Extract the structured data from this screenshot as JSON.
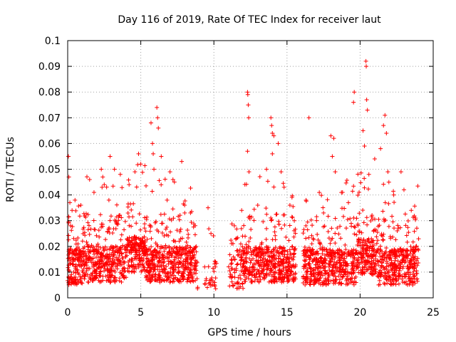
{
  "chart_data": {
    "type": "scatter",
    "title": "Day 116 of 2019, Rate Of TEC Index for receiver laut",
    "xlabel": "GPS time / hours",
    "ylabel": "ROTI / TECUs",
    "xlim": [
      0,
      25
    ],
    "ylim": [
      0,
      0.1
    ],
    "xticks": [
      "0",
      "5",
      "10",
      "15",
      "20",
      "25"
    ],
    "xtick_values": [
      0,
      5,
      10,
      15,
      20,
      25
    ],
    "yticks": [
      "0",
      "0.01",
      "0.02",
      "0.03",
      "0.04",
      "0.05",
      "0.06",
      "0.07",
      "0.08",
      "0.09",
      "0.1"
    ],
    "ytick_values": [
      0,
      0.01,
      0.02,
      0.03,
      0.04,
      0.05,
      0.06,
      0.07,
      0.08,
      0.09,
      0.1
    ],
    "grid": true,
    "marker": "+",
    "marker_color": "#ff0000",
    "data_gaps_hours": [
      [
        8.9,
        9.3
      ],
      [
        10.2,
        11.0
      ],
      [
        15.6,
        16.1
      ]
    ],
    "series": [
      {
        "name": "ROTI",
        "points": [
          [
            0.05,
            0.055
          ],
          [
            0.08,
            0.047
          ],
          [
            0.15,
            0.037
          ],
          [
            0.3,
            0.034
          ],
          [
            0.5,
            0.038
          ],
          [
            0.9,
            0.036
          ],
          [
            1.5,
            0.046
          ],
          [
            1.8,
            0.041
          ],
          [
            2.3,
            0.05
          ],
          [
            2.4,
            0.047
          ],
          [
            2.5,
            0.044
          ],
          [
            2.9,
            0.055
          ],
          [
            3.2,
            0.05
          ],
          [
            3.6,
            0.048
          ],
          [
            4.2,
            0.044
          ],
          [
            4.6,
            0.049
          ],
          [
            4.85,
            0.056
          ],
          [
            5.0,
            0.052
          ],
          [
            5.7,
            0.068
          ],
          [
            5.8,
            0.06
          ],
          [
            5.85,
            0.056
          ],
          [
            5.9,
            0.05
          ],
          [
            6.1,
            0.074
          ],
          [
            6.15,
            0.07
          ],
          [
            6.2,
            0.066
          ],
          [
            6.4,
            0.055
          ],
          [
            6.8,
            0.038
          ],
          [
            7.0,
            0.049
          ],
          [
            7.2,
            0.046
          ],
          [
            7.3,
            0.045
          ],
          [
            7.8,
            0.053
          ],
          [
            8.0,
            0.036
          ],
          [
            8.4,
            0.033
          ],
          [
            9.6,
            0.035
          ],
          [
            9.8,
            0.025
          ],
          [
            10.1,
            0.012
          ],
          [
            11.4,
            0.028
          ],
          [
            11.9,
            0.034
          ],
          [
            12.3,
            0.08
          ],
          [
            12.32,
            0.079
          ],
          [
            12.35,
            0.075
          ],
          [
            12.38,
            0.07
          ],
          [
            12.3,
            0.057
          ],
          [
            12.4,
            0.049
          ],
          [
            13.0,
            0.036
          ],
          [
            13.6,
            0.05
          ],
          [
            13.9,
            0.07
          ],
          [
            13.95,
            0.067
          ],
          [
            14.0,
            0.064
          ],
          [
            14.1,
            0.063
          ],
          [
            14.0,
            0.056
          ],
          [
            14.4,
            0.06
          ],
          [
            14.6,
            0.049
          ],
          [
            14.8,
            0.043
          ],
          [
            15.2,
            0.036
          ],
          [
            15.5,
            0.03
          ],
          [
            16.5,
            0.07
          ],
          [
            16.3,
            0.038
          ],
          [
            17.5,
            0.033
          ],
          [
            18.0,
            0.063
          ],
          [
            18.2,
            0.062
          ],
          [
            18.1,
            0.055
          ],
          [
            18.3,
            0.049
          ],
          [
            18.8,
            0.041
          ],
          [
            19.2,
            0.037
          ],
          [
            19.6,
            0.08
          ],
          [
            19.55,
            0.076
          ],
          [
            20.2,
            0.065
          ],
          [
            20.4,
            0.092
          ],
          [
            20.42,
            0.09
          ],
          [
            20.45,
            0.077
          ],
          [
            20.5,
            0.073
          ],
          [
            20.3,
            0.059
          ],
          [
            20.6,
            0.048
          ],
          [
            21.0,
            0.054
          ],
          [
            21.4,
            0.058
          ],
          [
            21.7,
            0.071
          ],
          [
            21.6,
            0.067
          ],
          [
            21.8,
            0.064
          ],
          [
            21.9,
            0.049
          ],
          [
            22.3,
            0.04
          ],
          [
            22.8,
            0.049
          ],
          [
            23.0,
            0.042
          ],
          [
            23.5,
            0.034
          ],
          [
            23.8,
            0.031
          ]
        ]
      }
    ]
  }
}
